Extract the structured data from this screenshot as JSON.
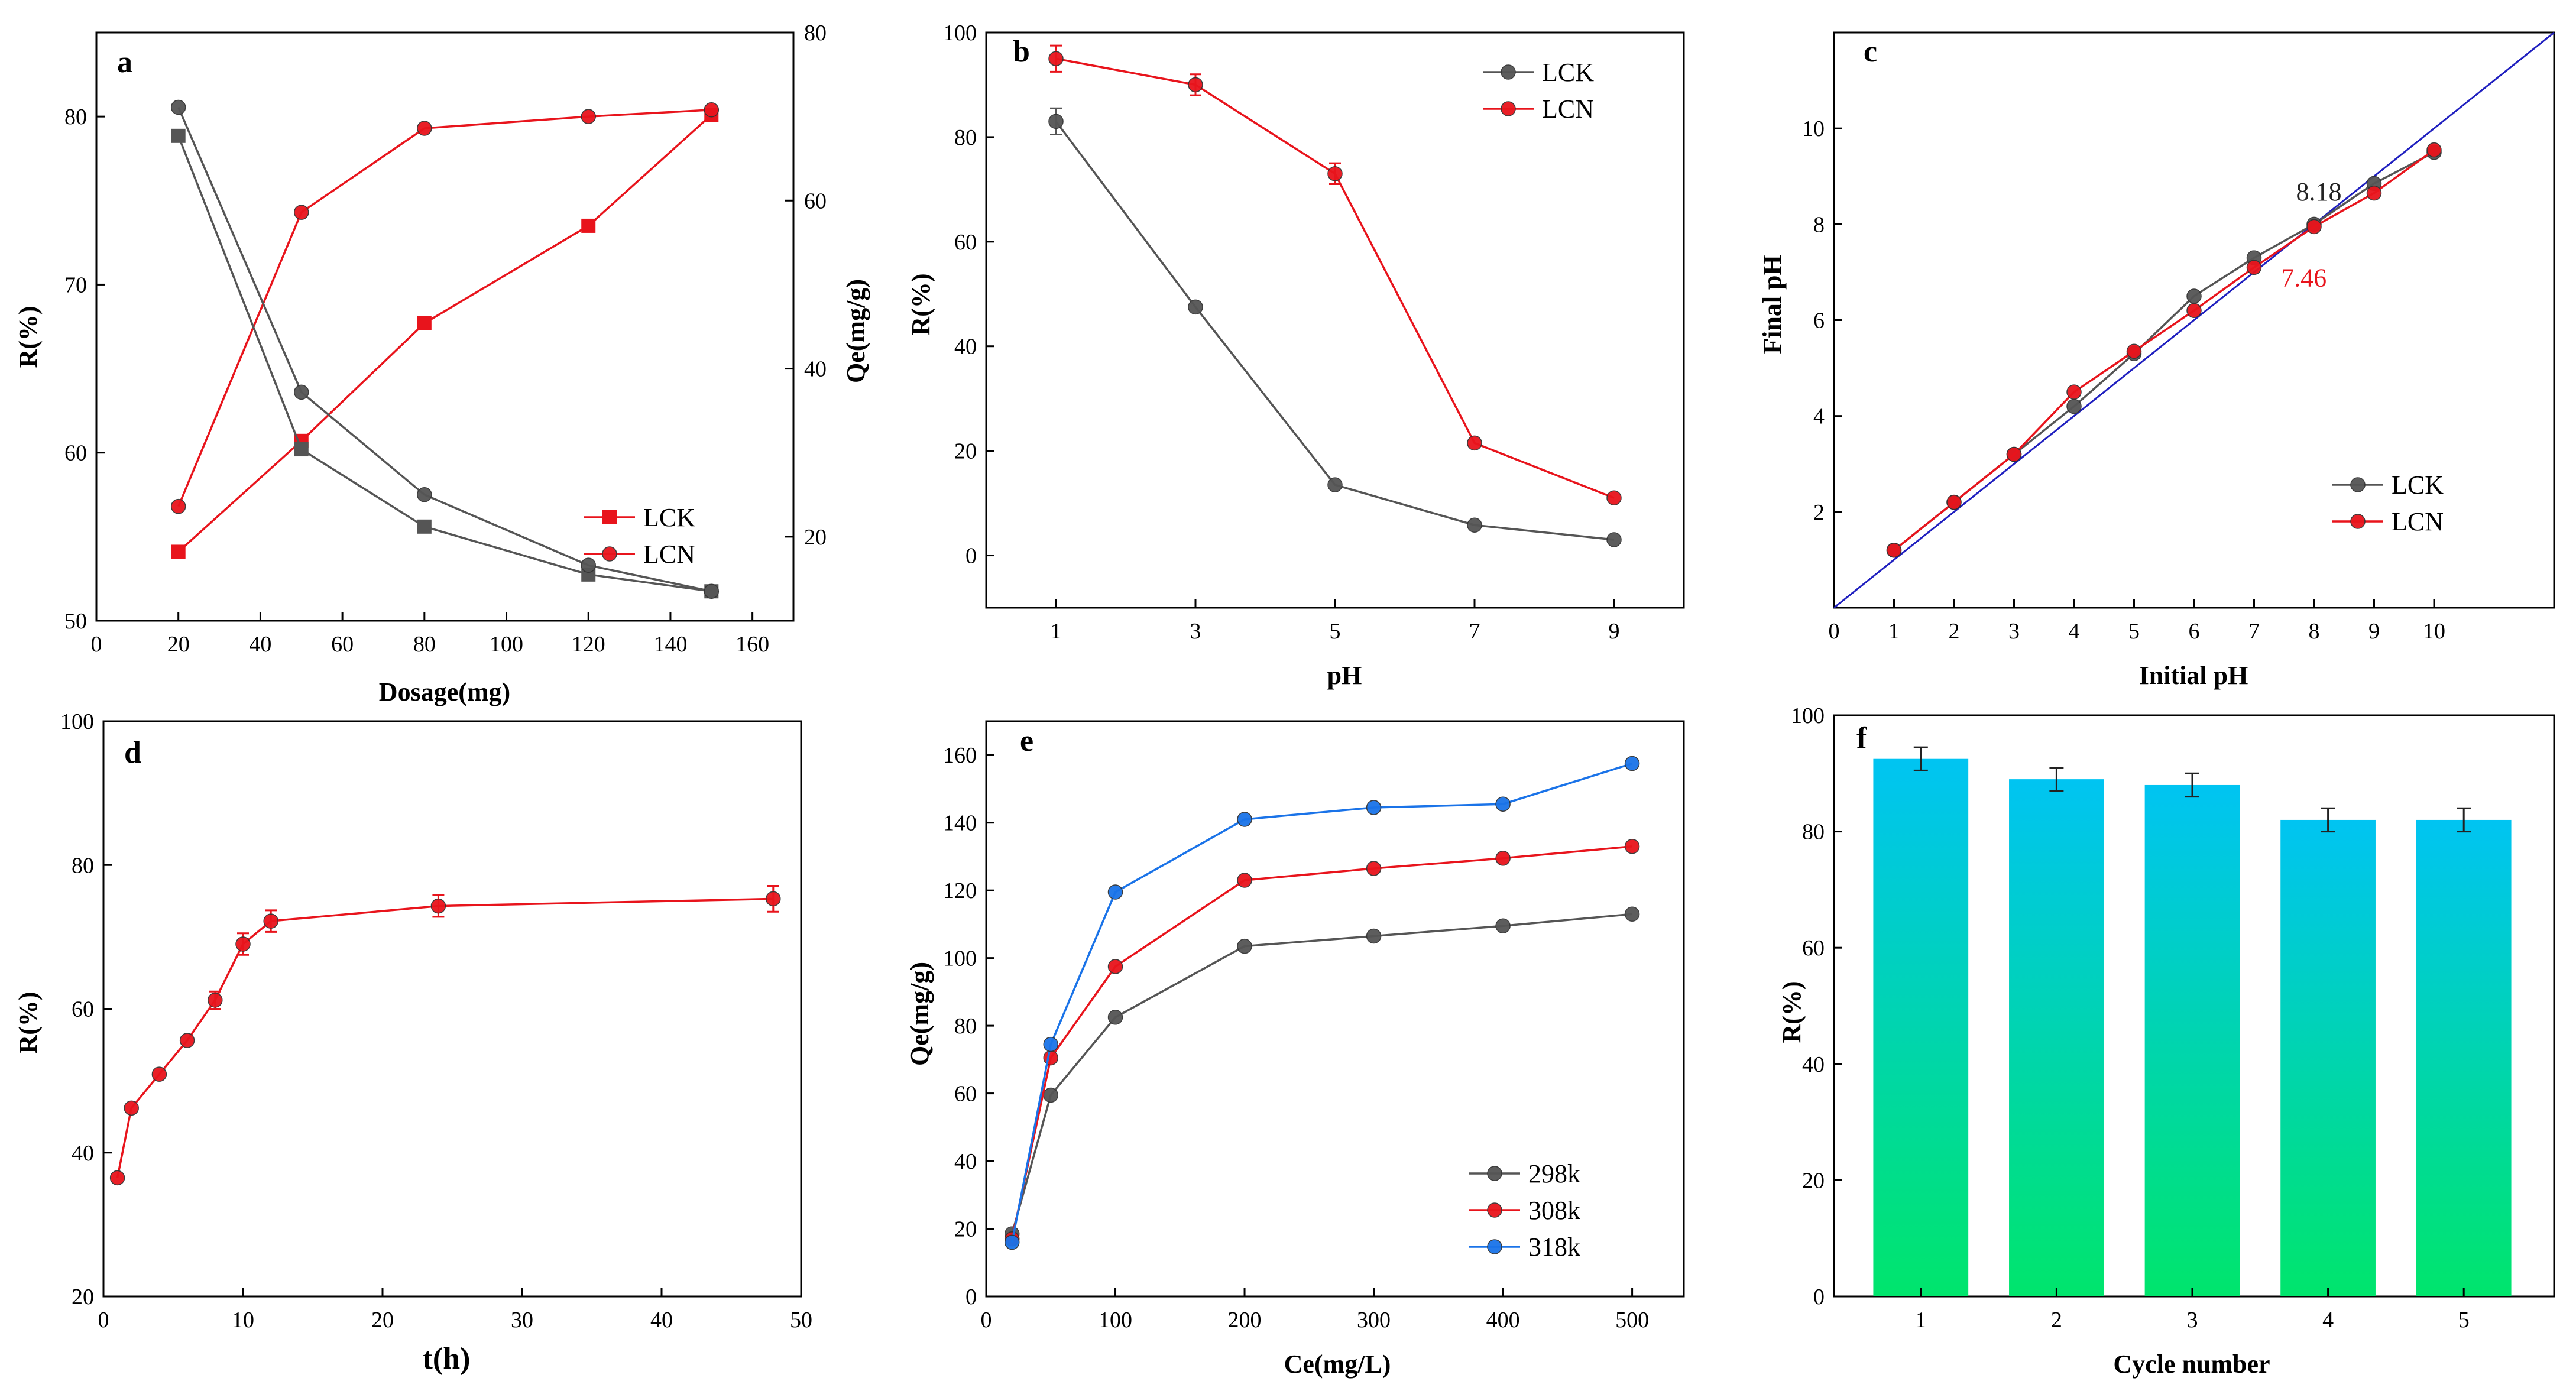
{
  "chart_data": [
    {
      "id": "a",
      "letter": "a",
      "type": "line",
      "xlabel": "Dosage(mg)",
      "ylabel": "R(%)",
      "y2label": "Qe(mg/g)",
      "xlim": [
        0,
        170
      ],
      "ylim": [
        50,
        85
      ],
      "y2lim": [
        10,
        80
      ],
      "xticks": [
        0,
        20,
        40,
        60,
        80,
        100,
        120,
        140,
        160
      ],
      "yticks": [
        50,
        60,
        70,
        80
      ],
      "y2ticks": [
        20,
        40,
        60,
        80
      ],
      "ytick_color": "#e8141c",
      "legend": "bottom-right",
      "series": [
        {
          "name": "LCK",
          "axis": "left",
          "marker": "square",
          "color": "#e8141c",
          "x": [
            20,
            50,
            80,
            120,
            150
          ],
          "y": [
            54.1,
            60.7,
            67.7,
            73.5,
            80.1
          ]
        },
        {
          "name": "LCN",
          "axis": "left",
          "marker": "circle",
          "color": "#e8141c",
          "x": [
            20,
            50,
            80,
            120,
            150
          ],
          "y": [
            56.8,
            74.3,
            79.3,
            80.0,
            80.4
          ]
        },
        {
          "name": "LCK Qe",
          "axis": "right",
          "marker": "square",
          "color": "#555555",
          "legend": false,
          "x": [
            20,
            50,
            80,
            120,
            150
          ],
          "y": [
            67.7,
            30.4,
            21.2,
            15.5,
            13.5
          ]
        },
        {
          "name": "LCN Qe",
          "axis": "right",
          "marker": "circle",
          "color": "#555555",
          "legend": false,
          "x": [
            20,
            50,
            80,
            120,
            150
          ],
          "y": [
            71.1,
            37.2,
            25.0,
            16.6,
            13.5
          ]
        }
      ]
    },
    {
      "id": "b",
      "letter": "b",
      "type": "line",
      "xlabel": "pH",
      "ylabel": "R(%)",
      "xlim": [
        0,
        10
      ],
      "ylim": [
        -10,
        100
      ],
      "xticks": [
        1,
        3,
        5,
        7,
        9
      ],
      "yticks": [
        0,
        20,
        40,
        60,
        80,
        100
      ],
      "legend": "top-right",
      "series": [
        {
          "name": "LCK",
          "marker": "circle",
          "color": "#555555",
          "x": [
            1,
            3,
            5,
            7,
            9
          ],
          "y": [
            83,
            47.5,
            13.5,
            5.8,
            3.0
          ],
          "err": [
            2.5,
            0,
            0,
            0,
            0
          ]
        },
        {
          "name": "LCN",
          "marker": "circle",
          "color": "#e8141c",
          "x": [
            1,
            3,
            5,
            7,
            9
          ],
          "y": [
            95,
            90,
            73,
            21.5,
            11.0
          ],
          "err": [
            2.5,
            2.0,
            2.0,
            0,
            0
          ]
        }
      ]
    },
    {
      "id": "c",
      "letter": "c",
      "type": "line",
      "xlabel": "Initial pH",
      "ylabel": "Final pH",
      "xlim": [
        0,
        12
      ],
      "ylim": [
        0,
        12
      ],
      "xticks": [
        0,
        1,
        2,
        3,
        4,
        5,
        6,
        7,
        8,
        9,
        10
      ],
      "yticks": [
        2,
        4,
        6,
        8,
        10
      ],
      "legend": "bottom-right",
      "reference_line": {
        "x": [
          0,
          12
        ],
        "y": [
          0,
          12
        ],
        "color": "#1f1fbf"
      },
      "annotations": [
        {
          "text": "8.18",
          "x": 7.7,
          "y": 8.5,
          "color": "#222222"
        },
        {
          "text": "7.46",
          "x": 7.45,
          "y": 6.7,
          "color": "#e8141c"
        }
      ],
      "series": [
        {
          "name": "LCK",
          "marker": "circle",
          "color": "#555555",
          "x": [
            1,
            2,
            3,
            4,
            5,
            6,
            7,
            8,
            9,
            10
          ],
          "y": [
            1.2,
            2.2,
            3.2,
            4.2,
            5.3,
            6.5,
            7.3,
            8.0,
            8.85,
            9.5
          ]
        },
        {
          "name": "LCN",
          "marker": "circle",
          "color": "#e8141c",
          "x": [
            1,
            2,
            3,
            4,
            5,
            6,
            7,
            8,
            9,
            10
          ],
          "y": [
            1.2,
            2.2,
            3.2,
            4.5,
            5.35,
            6.2,
            7.1,
            7.95,
            8.65,
            9.55
          ]
        }
      ]
    },
    {
      "id": "d",
      "letter": "d",
      "type": "line",
      "xlabel": "t(h)",
      "ylabel": "R(%)",
      "xlim": [
        0,
        50
      ],
      "ylim": [
        20,
        100
      ],
      "xticks": [
        0,
        10,
        20,
        30,
        40,
        50
      ],
      "yticks": [
        20,
        40,
        60,
        80,
        100
      ],
      "series": [
        {
          "name": "R",
          "marker": "circle",
          "color": "#e8141c",
          "x": [
            1,
            2,
            4,
            6,
            8,
            10,
            12,
            24,
            48
          ],
          "y": [
            36.5,
            46.2,
            50.9,
            55.6,
            61.2,
            69.0,
            72.2,
            74.3,
            75.3
          ],
          "err": [
            0,
            0,
            0,
            0,
            1.2,
            1.5,
            1.5,
            1.5,
            1.8
          ]
        }
      ]
    },
    {
      "id": "e",
      "letter": "e",
      "type": "line",
      "xlabel": "Ce(mg/L)",
      "ylabel": "Qe(mg/g)",
      "xlim": [
        0,
        540
      ],
      "ylim": [
        0,
        170
      ],
      "xticks": [
        0,
        100,
        200,
        300,
        400,
        500
      ],
      "yticks": [
        0,
        20,
        40,
        60,
        80,
        100,
        120,
        140,
        160
      ],
      "legend": "bottom-right",
      "series": [
        {
          "name": "298k",
          "marker": "circle",
          "color": "#555555",
          "x": [
            20,
            50,
            100,
            200,
            300,
            400,
            500
          ],
          "y": [
            18.5,
            59.5,
            82.5,
            103.5,
            106.5,
            109.5,
            113.0
          ]
        },
        {
          "name": "308k",
          "marker": "circle",
          "color": "#e8141c",
          "x": [
            20,
            50,
            100,
            200,
            300,
            400,
            500
          ],
          "y": [
            17.0,
            70.5,
            97.5,
            123.0,
            126.5,
            129.5,
            133.0
          ]
        },
        {
          "name": "318k",
          "marker": "circle",
          "color": "#1a73e8",
          "x": [
            20,
            50,
            100,
            200,
            300,
            400,
            500
          ],
          "y": [
            16.0,
            74.5,
            119.5,
            141.0,
            144.5,
            145.5,
            157.5
          ]
        }
      ]
    },
    {
      "id": "f",
      "letter": "f",
      "type": "bar",
      "xlabel": "Cycle number",
      "ylabel": "R(%)",
      "categories": [
        "1",
        "2",
        "3",
        "4",
        "5"
      ],
      "values": [
        92.5,
        89.0,
        88.0,
        82.0,
        82.0
      ],
      "err": [
        2.0,
        2.0,
        2.0,
        2.0,
        2.0
      ],
      "ylim": [
        0,
        100
      ],
      "yticks": [
        0,
        20,
        40,
        60,
        80,
        100
      ],
      "gradient": {
        "top": "#00c4f2",
        "bottom": "#00e56c"
      }
    }
  ]
}
